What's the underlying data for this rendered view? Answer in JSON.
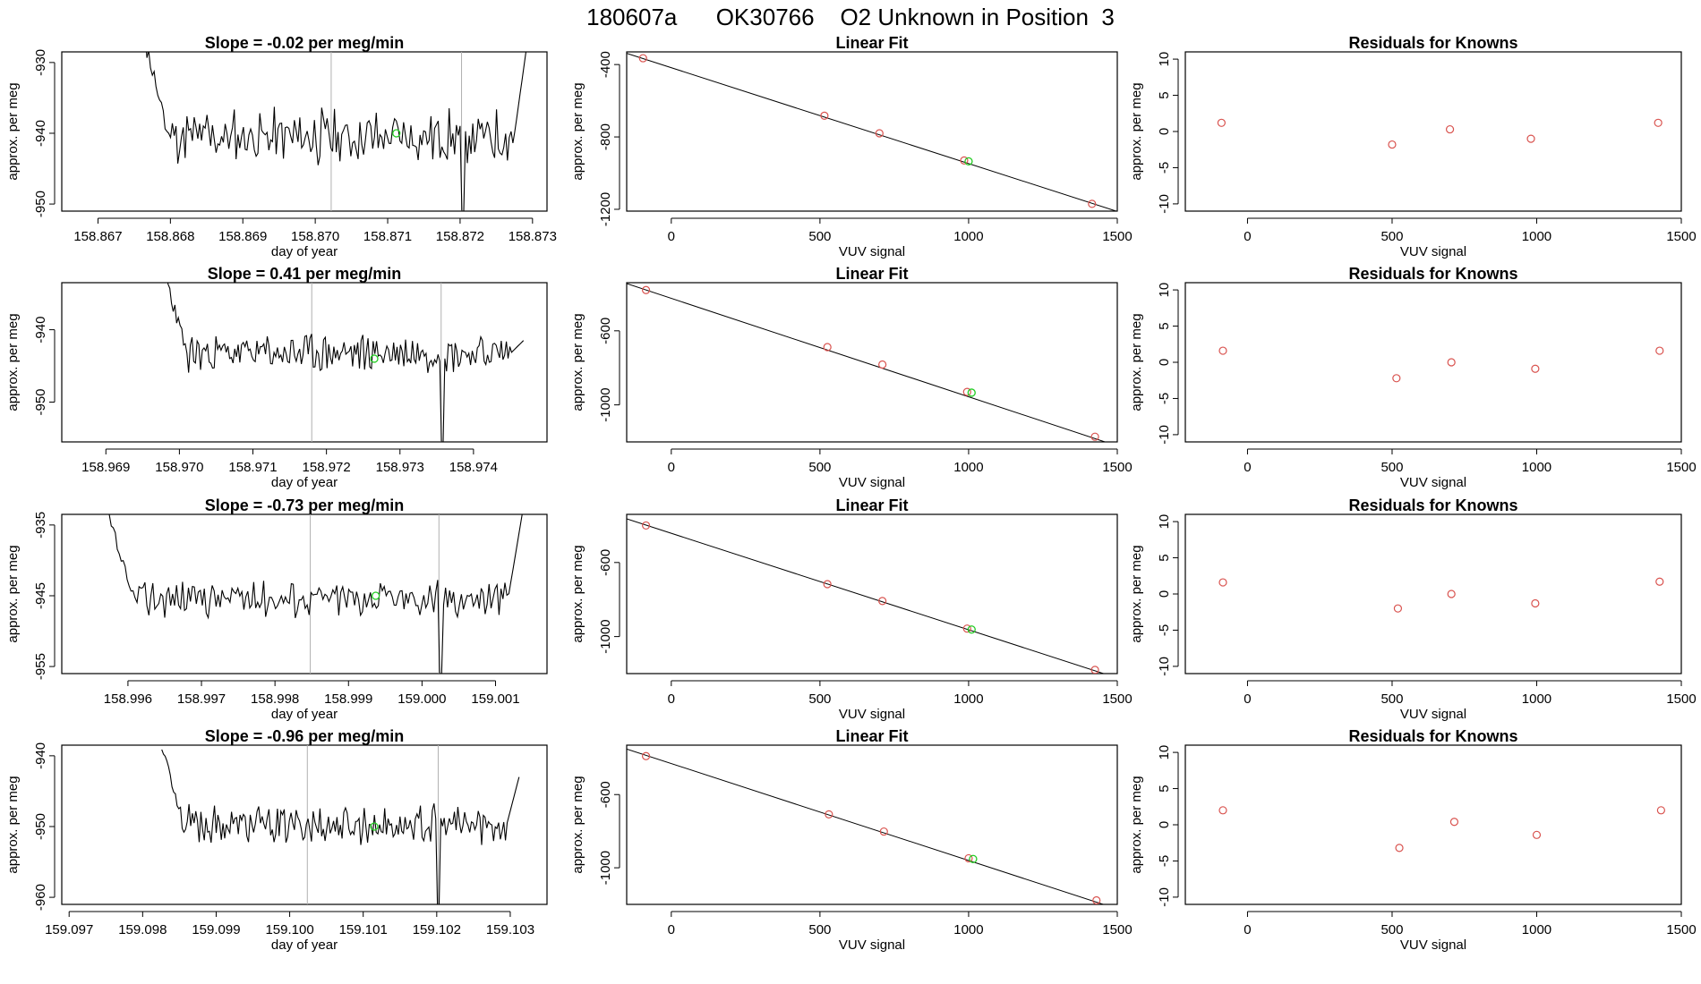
{
  "main_title": "180607a      OK30766    O2 Unknown in Position  3",
  "colors": {
    "line": "#000000",
    "frame": "#000000",
    "knowns": "#d9534f",
    "unknown": "#22cc22",
    "marker": "#b0b0b0"
  },
  "chart_data": [
    {
      "type": "line",
      "panel": "time-series",
      "row": 1,
      "title": "Slope =  -0.02  per meg/min",
      "xlabel": "day of year",
      "ylabel": "approx. per meg",
      "xlim": [
        158.8665,
        158.8732
      ],
      "ylim": [
        -951,
        -928.5
      ],
      "xticks": [
        158.867,
        158.868,
        158.869,
        158.87,
        158.871,
        158.872,
        158.873
      ],
      "xtick_labels": [
        "158.867",
        "158.868",
        "158.869",
        "158.870",
        "158.871",
        "158.872",
        "158.873"
      ],
      "yticks": [
        -930,
        -940,
        -950
      ],
      "ytick_labels": [
        "-930",
        "-940",
        "-950"
      ],
      "vlines": [
        158.87022,
        158.87202
      ],
      "series_start": 158.86765,
      "series_end": 158.87293,
      "base": -940.5,
      "noise": 3.2,
      "start_level": -927,
      "end_level": -927,
      "dip_at": 158.87202,
      "dip_to": -951,
      "seed": 11,
      "unknown_point": [
        158.87112,
        -940
      ]
    },
    {
      "type": "scatter",
      "panel": "linear-fit",
      "row": 1,
      "title": "Linear Fit",
      "xlabel": "VUV signal",
      "ylabel": "approx. per meg",
      "xlim": [
        -150,
        1500
      ],
      "ylim": [
        -1210,
        -330
      ],
      "xticks": [
        0,
        500,
        1000,
        1500
      ],
      "xtick_labels": [
        "0",
        "500",
        "1000",
        "1500"
      ],
      "yticks": [
        -400,
        -800,
        -1200
      ],
      "ytick_labels": [
        "-400",
        "-800",
        "-1200"
      ],
      "knowns": [
        [
          -95,
          -365
        ],
        [
          515,
          -683
        ],
        [
          700,
          -780
        ],
        [
          985,
          -930
        ],
        [
          1415,
          -1170
        ]
      ],
      "unknown": [
        1000,
        -935
      ],
      "fit_line": [
        [
          -150,
          -338
        ],
        [
          1500,
          -1212
        ]
      ]
    },
    {
      "type": "scatter",
      "panel": "residuals",
      "row": 1,
      "title": "Residuals for Knowns",
      "xlabel": "VUV signal",
      "ylabel": "approx. per meg",
      "xlim": [
        -215,
        1500
      ],
      "ylim": [
        -11,
        11
      ],
      "xticks": [
        0,
        500,
        1000,
        1500
      ],
      "xtick_labels": [
        "0",
        "500",
        "1000",
        "1500"
      ],
      "yticks": [
        10,
        5,
        0,
        -5,
        -10
      ],
      "ytick_labels": [
        "10",
        "5",
        "0",
        "-5",
        "-10"
      ],
      "points": [
        [
          -90,
          1.2
        ],
        [
          500,
          -1.8
        ],
        [
          700,
          0.3
        ],
        [
          980,
          -1.0
        ],
        [
          1420,
          1.2
        ]
      ]
    },
    {
      "type": "line",
      "panel": "time-series",
      "row": 2,
      "title": "Slope =  0.41  per meg/min",
      "xlabel": "day of year",
      "ylabel": "approx. per meg",
      "xlim": [
        158.9684,
        158.975
      ],
      "ylim": [
        -955.5,
        -933.5
      ],
      "xticks": [
        158.969,
        158.97,
        158.971,
        158.972,
        158.973,
        158.974
      ],
      "xtick_labels": [
        "158.969",
        "158.970",
        "158.971",
        "158.972",
        "158.973",
        "158.974"
      ],
      "yticks": [
        -940,
        -950
      ],
      "ytick_labels": [
        "-940",
        "-950"
      ],
      "vlines": [
        158.9718,
        158.97356
      ],
      "series_start": 158.9698,
      "series_end": 158.97468,
      "base": -943.2,
      "noise": 2.2,
      "start_level": -932,
      "end_level": -941.5,
      "dip_at": 158.97356,
      "dip_to": -955.5,
      "seed": 23,
      "unknown_point": [
        158.97265,
        -944
      ]
    },
    {
      "type": "scatter",
      "panel": "linear-fit",
      "row": 2,
      "title": "Linear Fit",
      "xlabel": "VUV signal",
      "ylabel": "approx. per meg",
      "xlim": [
        -150,
        1500
      ],
      "ylim": [
        -1200,
        -340
      ],
      "xticks": [
        0,
        500,
        1000,
        1500
      ],
      "xtick_labels": [
        "0",
        "500",
        "1000",
        "1500"
      ],
      "yticks": [
        -600,
        -1000
      ],
      "ytick_labels": [
        "-600",
        "-1000"
      ],
      "knowns": [
        [
          -85,
          -380
        ],
        [
          525,
          -688
        ],
        [
          710,
          -782
        ],
        [
          995,
          -930
        ],
        [
          1425,
          -1172
        ]
      ],
      "unknown": [
        1010,
        -934
      ],
      "fit_line": [
        [
          -150,
          -345
        ],
        [
          1500,
          -1222
        ]
      ]
    },
    {
      "type": "scatter",
      "panel": "residuals",
      "row": 2,
      "title": "Residuals for Knowns",
      "xlabel": "VUV signal",
      "ylabel": "approx. per meg",
      "xlim": [
        -215,
        1500
      ],
      "ylim": [
        -11,
        11
      ],
      "xticks": [
        0,
        500,
        1000,
        1500
      ],
      "xtick_labels": [
        "0",
        "500",
        "1000",
        "1500"
      ],
      "yticks": [
        10,
        5,
        0,
        -5,
        -10
      ],
      "ytick_labels": [
        "10",
        "5",
        "0",
        "-5",
        "-10"
      ],
      "points": [
        [
          -85,
          1.6
        ],
        [
          515,
          -2.2
        ],
        [
          705,
          0.0
        ],
        [
          995,
          -0.9
        ],
        [
          1425,
          1.6
        ]
      ]
    },
    {
      "type": "line",
      "panel": "time-series",
      "row": 3,
      "title": "Slope =  -0.73  per meg/min",
      "xlabel": "day of year",
      "ylabel": "approx. per meg",
      "xlim": [
        158.9951,
        159.0017
      ],
      "ylim": [
        -956,
        -933.5
      ],
      "xticks": [
        158.996,
        158.997,
        158.998,
        158.999,
        159.0,
        159.001
      ],
      "xtick_labels": [
        "158.996",
        "158.997",
        "158.998",
        "158.999",
        "159.000",
        "159.001"
      ],
      "yticks": [
        -935,
        -945,
        -955
      ],
      "ytick_labels": [
        "-935",
        "-945",
        "-955"
      ],
      "vlines": [
        158.99848,
        159.00023
      ],
      "series_start": 158.99572,
      "series_end": 159.00137,
      "base": -945.3,
      "noise": 2.2,
      "start_level": -933,
      "end_level": -933,
      "dip_at": 159.00023,
      "dip_to": -956,
      "seed": 37,
      "unknown_point": [
        158.99937,
        -945
      ]
    },
    {
      "type": "scatter",
      "panel": "linear-fit",
      "row": 3,
      "title": "Linear Fit",
      "xlabel": "VUV signal",
      "ylabel": "approx. per meg",
      "xlim": [
        -150,
        1500
      ],
      "ylim": [
        -1200,
        -340
      ],
      "xticks": [
        0,
        500,
        1000,
        1500
      ],
      "xtick_labels": [
        "0",
        "500",
        "1000",
        "1500"
      ],
      "yticks": [
        -600,
        -1000
      ],
      "ytick_labels": [
        "-600",
        "-1000"
      ],
      "knowns": [
        [
          -85,
          -400
        ],
        [
          525,
          -717
        ],
        [
          710,
          -808
        ],
        [
          995,
          -957
        ],
        [
          1425,
          -1180
        ]
      ],
      "unknown": [
        1010,
        -962
      ],
      "fit_line": [
        [
          -150,
          -364
        ],
        [
          1500,
          -1224
        ]
      ]
    },
    {
      "type": "scatter",
      "panel": "residuals",
      "row": 3,
      "title": "Residuals for Knowns",
      "xlabel": "VUV signal",
      "ylabel": "approx. per meg",
      "xlim": [
        -215,
        1500
      ],
      "ylim": [
        -11,
        11
      ],
      "xticks": [
        0,
        500,
        1000,
        1500
      ],
      "xtick_labels": [
        "0",
        "500",
        "1000",
        "1500"
      ],
      "yticks": [
        10,
        5,
        0,
        -5,
        -10
      ],
      "ytick_labels": [
        "10",
        "5",
        "0",
        "-5",
        "-10"
      ],
      "points": [
        [
          -85,
          1.6
        ],
        [
          520,
          -2.0
        ],
        [
          705,
          0.0
        ],
        [
          995,
          -1.3
        ],
        [
          1425,
          1.7
        ]
      ]
    },
    {
      "type": "line",
      "panel": "time-series",
      "row": 4,
      "title": "Slope =  -0.96  per meg/min",
      "xlabel": "day of year",
      "ylabel": "approx. per meg",
      "xlim": [
        159.0969,
        159.1035
      ],
      "ylim": [
        -961,
        -938.5
      ],
      "xticks": [
        159.097,
        159.098,
        159.099,
        159.1,
        159.101,
        159.102,
        159.103
      ],
      "xtick_labels": [
        "159.097",
        "159.098",
        "159.099",
        "159.100",
        "159.101",
        "159.102",
        "159.103"
      ],
      "yticks": [
        -940,
        -950,
        -960
      ],
      "ytick_labels": [
        "-940",
        "-950",
        "-960"
      ],
      "vlines": [
        159.10024,
        159.10202
      ],
      "series_start": 159.09826,
      "series_end": 159.10312,
      "base": -949.8,
      "noise": 2.3,
      "start_level": -938,
      "end_level": -943,
      "dip_at": 159.10202,
      "dip_to": -961,
      "seed": 53,
      "unknown_point": [
        159.10115,
        -950
      ]
    },
    {
      "type": "scatter",
      "panel": "linear-fit",
      "row": 4,
      "title": "Linear Fit",
      "xlabel": "VUV signal",
      "ylabel": "approx. per meg",
      "xlim": [
        -150,
        1500
      ],
      "ylim": [
        -1200,
        -330
      ],
      "xticks": [
        0,
        500,
        1000,
        1500
      ],
      "xtick_labels": [
        "0",
        "500",
        "1000",
        "1500"
      ],
      "yticks": [
        -600,
        -1000
      ],
      "ytick_labels": [
        "-600",
        "-1000"
      ],
      "knowns": [
        [
          -85,
          -390
        ],
        [
          530,
          -708
        ],
        [
          715,
          -802
        ],
        [
          1000,
          -948
        ],
        [
          1430,
          -1178
        ]
      ],
      "unknown": [
        1015,
        -952
      ],
      "fit_line": [
        [
          -150,
          -351
        ],
        [
          1500,
          -1225
        ]
      ]
    },
    {
      "type": "scatter",
      "panel": "residuals",
      "row": 4,
      "title": "Residuals for Knowns",
      "xlabel": "VUV signal",
      "ylabel": "approx. per meg",
      "xlim": [
        -215,
        1500
      ],
      "ylim": [
        -11,
        11
      ],
      "xticks": [
        0,
        500,
        1000,
        1500
      ],
      "xtick_labels": [
        "0",
        "500",
        "1000",
        "1500"
      ],
      "yticks": [
        10,
        5,
        0,
        -5,
        -10
      ],
      "ytick_labels": [
        "10",
        "5",
        "0",
        "-5",
        "-10"
      ],
      "points": [
        [
          -85,
          2.0
        ],
        [
          525,
          -3.2
        ],
        [
          715,
          0.4
        ],
        [
          1000,
          -1.4
        ],
        [
          1430,
          2.0
        ]
      ]
    }
  ]
}
